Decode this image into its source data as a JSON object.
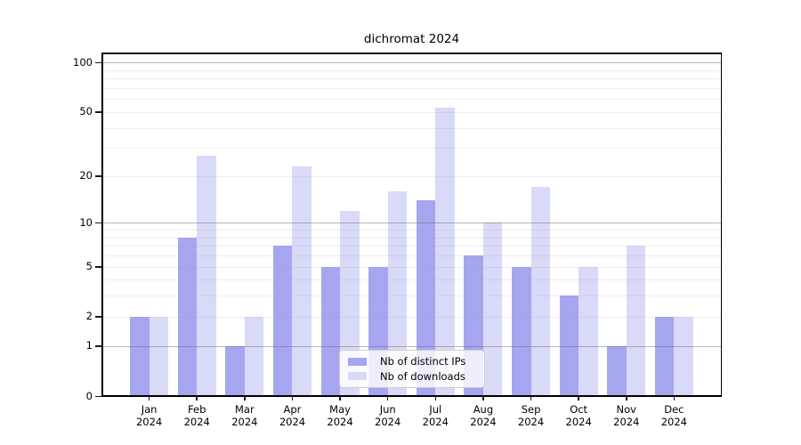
{
  "title": "dichromat 2024",
  "legend": {
    "items": [
      {
        "label": "Nb of distinct IPs",
        "color": "#a6a6f0"
      },
      {
        "label": "Nb of downloads",
        "color": "#d9d9f8"
      }
    ]
  },
  "chart_data": {
    "type": "bar",
    "title": "dichromat 2024",
    "categories": [
      "Jan",
      "Feb",
      "Mar",
      "Apr",
      "May",
      "Jun",
      "Jul",
      "Aug",
      "Sep",
      "Oct",
      "Nov",
      "Dec"
    ],
    "category_year": "2024",
    "series": [
      {
        "name": "Nb of distinct IPs",
        "color": "#a6a6f0",
        "values": [
          2,
          8,
          1,
          7,
          5,
          5,
          14,
          6,
          5,
          3,
          1,
          2
        ]
      },
      {
        "name": "Nb of downloads",
        "color": "#d9d9f8",
        "values": [
          2,
          27,
          2,
          23,
          12,
          16,
          53,
          10,
          17,
          5,
          7,
          2
        ]
      }
    ],
    "xlabel": "",
    "ylabel": "",
    "y_scale": "log1p",
    "ylim": [
      0,
      115
    ],
    "y_ticks": [
      0,
      1,
      2,
      5,
      10,
      20,
      50,
      100
    ],
    "y_gridlines_major": [
      1,
      10,
      100
    ],
    "y_gridlines_minor": [
      2,
      3,
      4,
      5,
      6,
      7,
      8,
      9,
      20,
      30,
      40,
      50,
      60,
      70,
      80,
      90
    ],
    "grid": "horizontal",
    "legend_position": "lower center"
  }
}
